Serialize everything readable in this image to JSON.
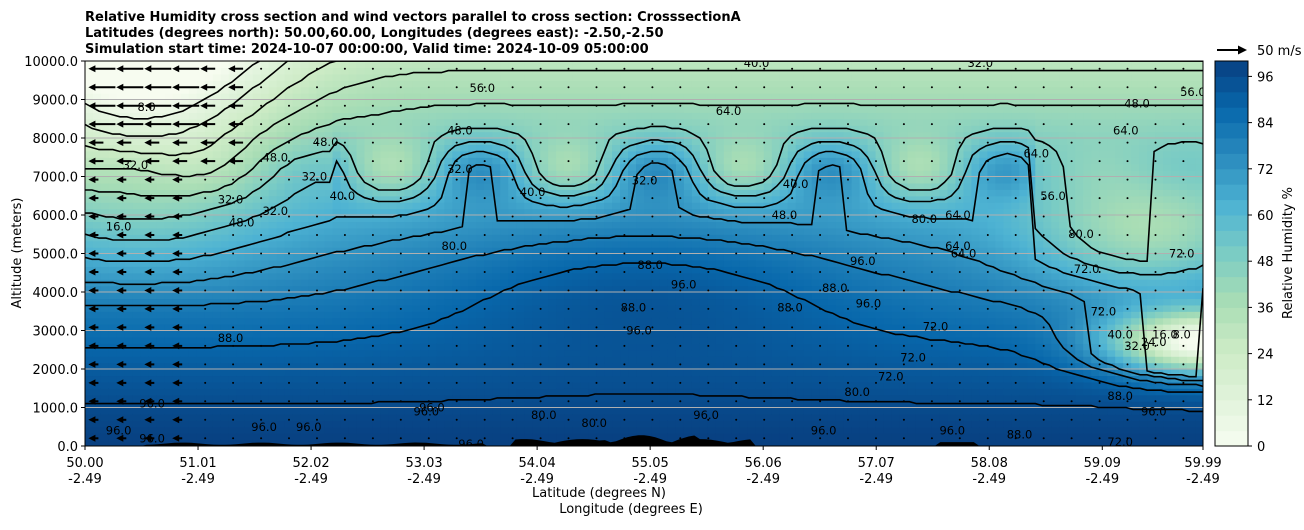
{
  "title_lines": [
    "Relative Humidity cross section and wind vectors parallel to cross section: CrosssectionA",
    "Latitudes (degrees north): 50.00,60.00, Longitudes (degrees east): -2.50,-2.50",
    "Simulation start time: 2024-10-07 00:00:00, Valid time: 2024-10-09 05:00:00"
  ],
  "chart_data": {
    "type": "heatmap",
    "description_free": true,
    "x_axis": {
      "label_lat": "Latitude (degrees N)",
      "label_lon": "Longitude (degrees E)",
      "ticks_lat": [
        "50.00",
        "51.01",
        "52.02",
        "53.03",
        "54.04",
        "55.05",
        "56.06",
        "57.07",
        "58.08",
        "59.09",
        "59.99"
      ],
      "ticks_lon": [
        "-2.49",
        "-2.49",
        "-2.49",
        "-2.49",
        "-2.49",
        "-2.49",
        "-2.49",
        "-2.49",
        "-2.49",
        "-2.49",
        "-2.49"
      ],
      "lat_values": [
        50.0,
        51.01,
        52.02,
        53.03,
        54.04,
        55.05,
        56.06,
        57.07,
        58.08,
        59.09,
        59.99
      ],
      "range": [
        50.0,
        59.99
      ]
    },
    "y_axis": {
      "label": "Altitude (meters)",
      "ticks": [
        "0.0",
        "1000.0",
        "2000.0",
        "3000.0",
        "4000.0",
        "5000.0",
        "6000.0",
        "7000.0",
        "8000.0",
        "9000.0",
        "10000.0"
      ],
      "range": [
        0,
        10000
      ],
      "grid": true
    },
    "colorbar": {
      "label": "Relative Humidity %",
      "ticks": [
        "0",
        "12",
        "24",
        "36",
        "48",
        "60",
        "72",
        "84",
        "96"
      ],
      "tick_values": [
        0,
        12,
        24,
        36,
        48,
        60,
        72,
        84,
        96
      ],
      "range": [
        0,
        100
      ],
      "colormap": [
        "#f7fcf0",
        "#e0f3db",
        "#ccebc5",
        "#a8ddb5",
        "#7bccc4",
        "#4eb3d3",
        "#2b8cbe",
        "#0868ac",
        "#084081"
      ]
    },
    "wind_key": {
      "label": "50 m/s",
      "value": 50
    },
    "contour_levels": [
      8.0,
      16.0,
      24.0,
      32.0,
      40.0,
      48.0,
      56.0,
      64.0,
      72.0,
      80.0,
      88.0,
      96.0
    ],
    "contour_labels": [
      {
        "text": "8.0",
        "lat": 50.55,
        "alt": 8800
      },
      {
        "text": "56.0",
        "lat": 53.55,
        "alt": 9300
      },
      {
        "text": "40.0",
        "lat": 56.0,
        "alt": 9950
      },
      {
        "text": "32.0",
        "lat": 58.0,
        "alt": 9950
      },
      {
        "text": "48.0",
        "lat": 53.35,
        "alt": 8200
      },
      {
        "text": "64.0",
        "lat": 55.75,
        "alt": 8700
      },
      {
        "text": "32.0",
        "lat": 50.45,
        "alt": 7300
      },
      {
        "text": "16.0",
        "lat": 50.3,
        "alt": 5700
      },
      {
        "text": "32.0",
        "lat": 51.3,
        "alt": 6400
      },
      {
        "text": "32.0",
        "lat": 51.7,
        "alt": 6100
      },
      {
        "text": "48.0",
        "lat": 51.4,
        "alt": 5800
      },
      {
        "text": "32.0",
        "lat": 52.05,
        "alt": 7000
      },
      {
        "text": "48.0",
        "lat": 52.15,
        "alt": 7900
      },
      {
        "text": "40.0",
        "lat": 52.3,
        "alt": 6500
      },
      {
        "text": "48.0",
        "lat": 51.7,
        "alt": 7500
      },
      {
        "text": "32.0",
        "lat": 53.35,
        "alt": 7200
      },
      {
        "text": "40.0",
        "lat": 54.0,
        "alt": 6600
      },
      {
        "text": "32.0",
        "lat": 55.0,
        "alt": 6900
      },
      {
        "text": "40.0",
        "lat": 56.35,
        "alt": 6800
      },
      {
        "text": "48.0",
        "lat": 56.25,
        "alt": 6000
      },
      {
        "text": "64.0",
        "lat": 57.8,
        "alt": 6000
      },
      {
        "text": "80.0",
        "lat": 57.5,
        "alt": 5900
      },
      {
        "text": "64.0",
        "lat": 57.8,
        "alt": 5200
      },
      {
        "text": "80.0",
        "lat": 53.3,
        "alt": 5200
      },
      {
        "text": "88.0",
        "lat": 55.05,
        "alt": 4700
      },
      {
        "text": "96.0",
        "lat": 55.35,
        "alt": 4200
      },
      {
        "text": "88.0",
        "lat": 54.9,
        "alt": 3600
      },
      {
        "text": "96.0",
        "lat": 54.95,
        "alt": 3000
      },
      {
        "text": "88.0",
        "lat": 56.3,
        "alt": 3600
      },
      {
        "text": "88.0",
        "lat": 56.7,
        "alt": 4100
      },
      {
        "text": "96.0",
        "lat": 56.95,
        "alt": 4800
      },
      {
        "text": "96.0",
        "lat": 57.0,
        "alt": 3700
      },
      {
        "text": "72.0",
        "lat": 57.6,
        "alt": 3100
      },
      {
        "text": "72.0",
        "lat": 57.4,
        "alt": 2300
      },
      {
        "text": "72.0",
        "lat": 57.2,
        "alt": 1800
      },
      {
        "text": "80.0",
        "lat": 56.9,
        "alt": 1400
      },
      {
        "text": "64.0",
        "lat": 57.85,
        "alt": 5000
      },
      {
        "text": "72.0",
        "lat": 58.95,
        "alt": 4600
      },
      {
        "text": "72.0",
        "lat": 59.1,
        "alt": 3500
      },
      {
        "text": "72.0",
        "lat": 59.8,
        "alt": 5000
      },
      {
        "text": "80.0",
        "lat": 58.9,
        "alt": 5500
      },
      {
        "text": "64.0",
        "lat": 58.5,
        "alt": 7600
      },
      {
        "text": "56.0",
        "lat": 58.65,
        "alt": 6500
      },
      {
        "text": "64.0",
        "lat": 59.3,
        "alt": 8200
      },
      {
        "text": "56.0",
        "lat": 59.9,
        "alt": 9200
      },
      {
        "text": "48.0",
        "lat": 59.4,
        "alt": 8900
      },
      {
        "text": "40.0",
        "lat": 59.25,
        "alt": 2900
      },
      {
        "text": "32.0",
        "lat": 59.4,
        "alt": 2600
      },
      {
        "text": "24.0",
        "lat": 59.55,
        "alt": 2700
      },
      {
        "text": "16.0",
        "lat": 59.65,
        "alt": 2900
      },
      {
        "text": "8.0",
        "lat": 59.8,
        "alt": 2900
      },
      {
        "text": "88.0",
        "lat": 51.3,
        "alt": 2800
      },
      {
        "text": "96.0",
        "lat": 50.6,
        "alt": 1100
      },
      {
        "text": "96.0",
        "lat": 51.6,
        "alt": 500
      },
      {
        "text": "96.0",
        "lat": 52.0,
        "alt": 500
      },
      {
        "text": "96.0",
        "lat": 53.05,
        "alt": 900
      },
      {
        "text": "96.0",
        "lat": 53.1,
        "alt": 1000
      },
      {
        "text": "80.0",
        "lat": 54.1,
        "alt": 800
      },
      {
        "text": "80.0",
        "lat": 54.55,
        "alt": 600
      },
      {
        "text": "96.0",
        "lat": 55.55,
        "alt": 800
      },
      {
        "text": "96.0",
        "lat": 56.6,
        "alt": 400
      },
      {
        "text": "96.0",
        "lat": 57.75,
        "alt": 400
      },
      {
        "text": "88.0",
        "lat": 58.35,
        "alt": 300
      },
      {
        "text": "88.0",
        "lat": 59.25,
        "alt": 1300
      },
      {
        "text": "96.0",
        "lat": 59.55,
        "alt": 900
      },
      {
        "text": "72.0",
        "lat": 59.25,
        "alt": 100
      },
      {
        "text": "96.0",
        "lat": 53.45,
        "alt": 50
      },
      {
        "text": "96.0",
        "lat": 50.6,
        "alt": 200
      },
      {
        "text": "96.0",
        "lat": 50.3,
        "alt": 400
      }
    ]
  }
}
